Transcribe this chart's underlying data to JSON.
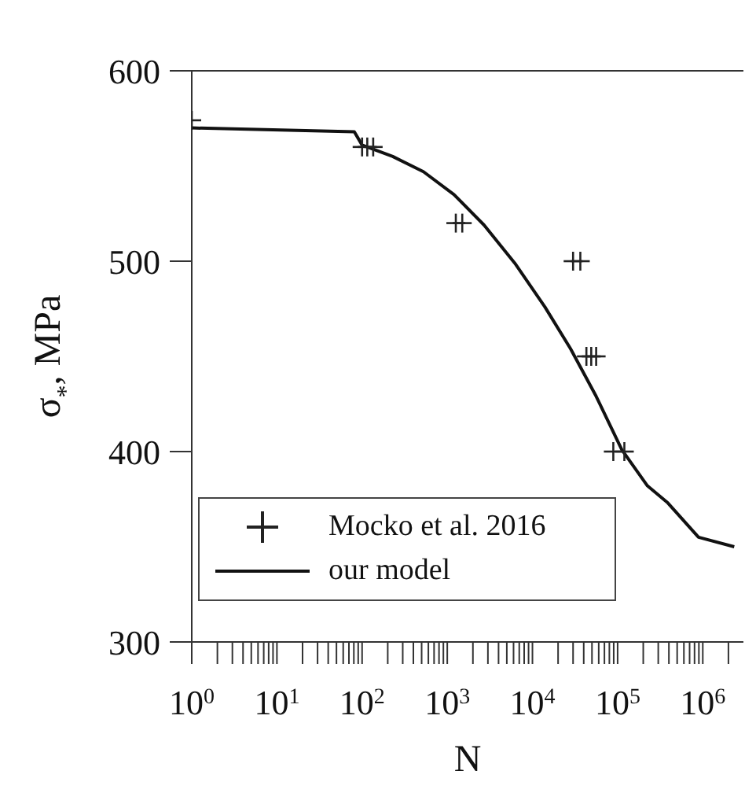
{
  "chart_data": {
    "type": "scatter",
    "xlabel": "N",
    "ylabel": "σ$_{*}$, MPa",
    "log": "x",
    "xlim": [
      1,
      3000000
    ],
    "ylim": [
      300,
      600
    ],
    "xticks": [
      {
        "value": 1,
        "label": "10$^{0}$"
      },
      {
        "value": 2,
        "label": null
      },
      {
        "value": 3,
        "label": null
      },
      {
        "value": 4,
        "label": null
      },
      {
        "value": 5,
        "label": null
      },
      {
        "value": 6,
        "label": null
      },
      {
        "value": 7,
        "label": null
      },
      {
        "value": 8,
        "label": null
      },
      {
        "value": 9,
        "label": null
      },
      {
        "value": 10,
        "label": "10$^{1}$"
      },
      {
        "value": 20,
        "label": null
      },
      {
        "value": 30,
        "label": null
      },
      {
        "value": 40,
        "label": null
      },
      {
        "value": 50,
        "label": null
      },
      {
        "value": 60,
        "label": null
      },
      {
        "value": 70,
        "label": null
      },
      {
        "value": 80,
        "label": null
      },
      {
        "value": 90,
        "label": null
      },
      {
        "value": 100,
        "label": "10$^{2}$"
      },
      {
        "value": 200,
        "label": null
      },
      {
        "value": 300,
        "label": null
      },
      {
        "value": 400,
        "label": null
      },
      {
        "value": 500,
        "label": null
      },
      {
        "value": 600,
        "label": null
      },
      {
        "value": 700,
        "label": null
      },
      {
        "value": 800,
        "label": null
      },
      {
        "value": 900,
        "label": null
      },
      {
        "value": 1000,
        "label": "10$^{3}$"
      },
      {
        "value": 2000,
        "label": null
      },
      {
        "value": 3000,
        "label": null
      },
      {
        "value": 4000,
        "label": null
      },
      {
        "value": 5000,
        "label": null
      },
      {
        "value": 6000,
        "label": null
      },
      {
        "value": 7000,
        "label": null
      },
      {
        "value": 8000,
        "label": null
      },
      {
        "value": 9000,
        "label": null
      },
      {
        "value": 10000,
        "label": "10$^{4}$"
      },
      {
        "value": 20000,
        "label": null
      },
      {
        "value": 30000,
        "label": null
      },
      {
        "value": 40000,
        "label": null
      },
      {
        "value": 50000,
        "label": null
      },
      {
        "value": 60000,
        "label": null
      },
      {
        "value": 70000,
        "label": null
      },
      {
        "value": 80000,
        "label": null
      },
      {
        "value": 90000,
        "label": null
      },
      {
        "value": 100000,
        "label": "10$^{5}$"
      },
      {
        "value": 200000,
        "label": null
      },
      {
        "value": 300000,
        "label": null
      },
      {
        "value": 400000,
        "label": null
      },
      {
        "value": 500000,
        "label": null
      },
      {
        "value": 600000,
        "label": null
      },
      {
        "value": 700000,
        "label": null
      },
      {
        "value": 800000,
        "label": null
      },
      {
        "value": 900000,
        "label": null
      },
      {
        "value": 1000000,
        "label": "10$^{6}$"
      },
      {
        "value": 2000000,
        "label": null
      }
    ],
    "yticks": [
      300,
      400,
      500,
      600
    ],
    "grid": false,
    "legend": "bottom left",
    "marker": "cross",
    "series": [
      {
        "name": "Mocko et al. 2016",
        "color": "#222222",
        "x": [
          1,
          100,
          115,
          135,
          1260,
          1500,
          30000,
          36500,
          43000,
          49000,
          56000,
          89000,
          120000
        ],
        "values": [
          574,
          560,
          560,
          560,
          520,
          520,
          500,
          500,
          450,
          450,
          450,
          400,
          400
        ]
      },
      {
        "name": "our model",
        "type": "line",
        "color": "#111111",
        "line_style": "solid",
        "marker": "none",
        "x": [
          1,
          81,
          100,
          229,
          525,
          1200,
          2700,
          6200,
          14000,
          28000,
          56000,
          112000,
          224000,
          389000,
          891000,
          2340000
        ],
        "values": [
          570,
          568,
          561,
          555,
          547,
          535,
          519,
          499,
          476,
          454,
          429,
          401,
          382,
          373,
          355,
          350
        ]
      }
    ]
  }
}
